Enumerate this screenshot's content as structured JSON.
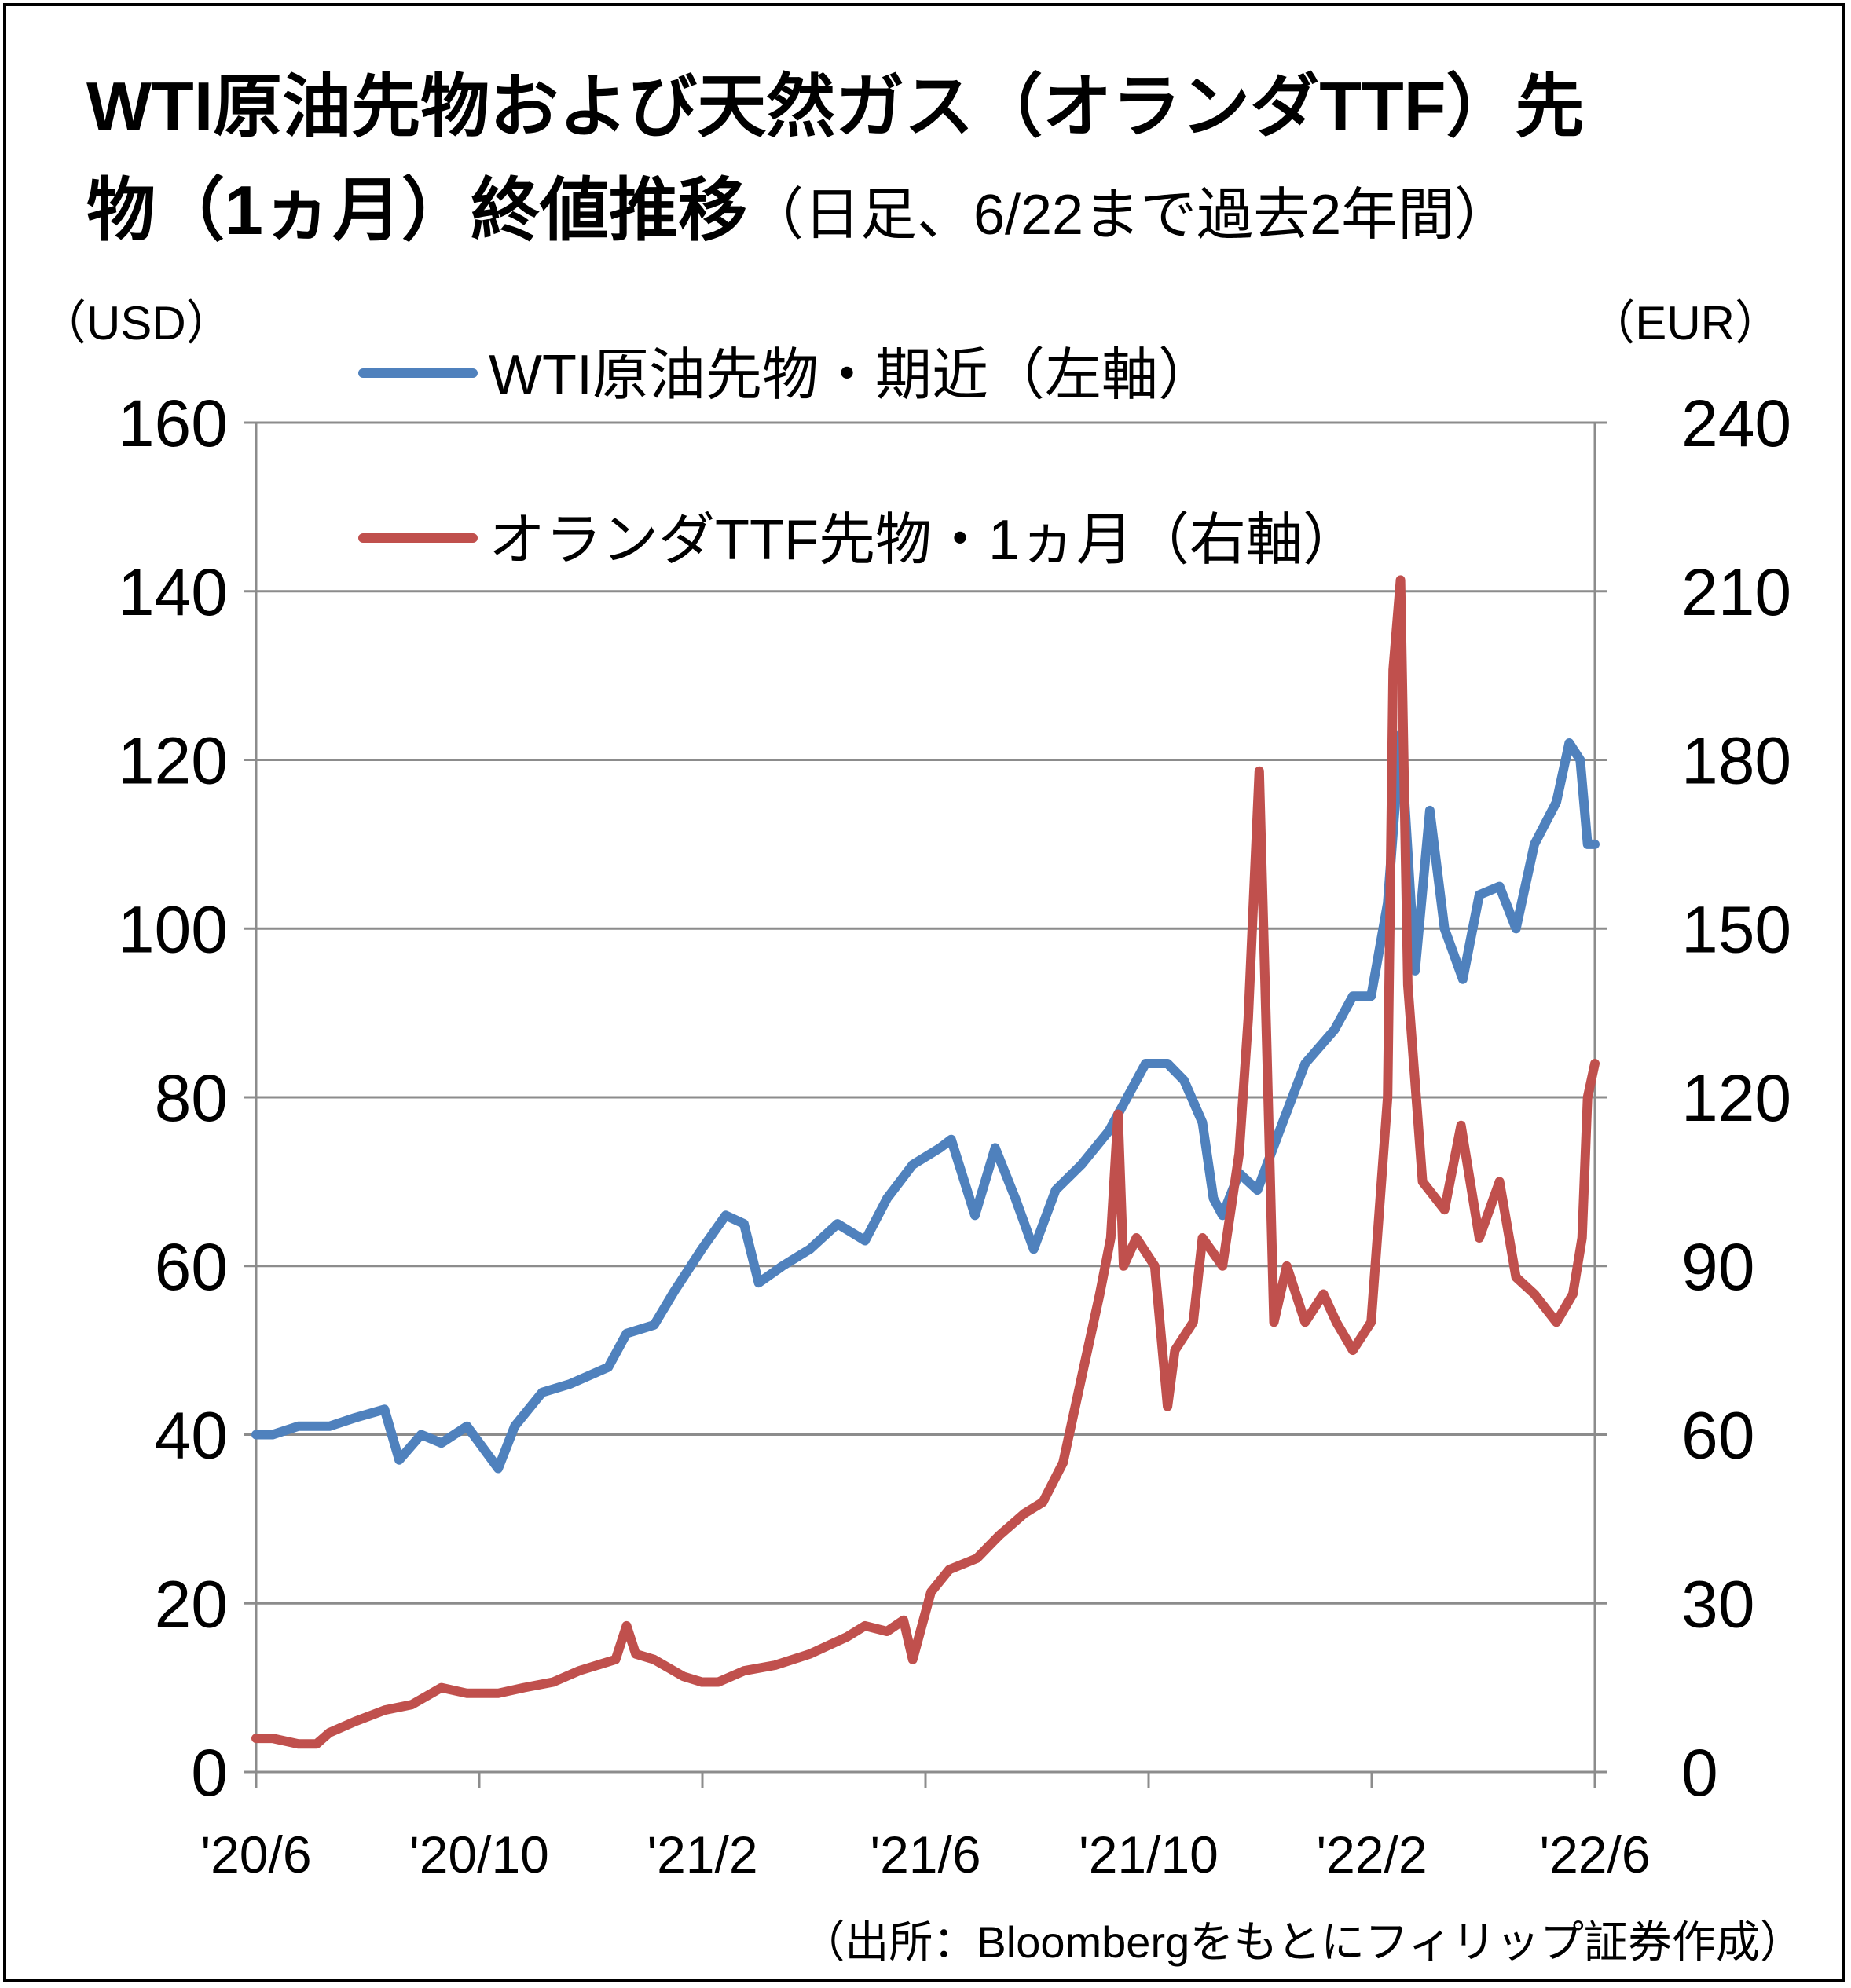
{
  "title": {
    "main_line1": "WTI原油先物および天然ガス（オランダTTF）先",
    "main_line2": "物（1ヵ月）終値推移",
    "sub": "（日足、6/22まで過去2年間）"
  },
  "source": "（出所：Bloombergをもとにフィリップ証券作成）",
  "colors": {
    "wti": "#4f81bd",
    "ttf": "#c0504d",
    "grid": "#8c8c8c"
  },
  "chart_data": {
    "type": "line",
    "y_left_unit": "（USD）",
    "y_right_unit": "（EUR）",
    "y_left_ticks": [
      "0",
      "20",
      "40",
      "60",
      "80",
      "100",
      "120",
      "140",
      "160"
    ],
    "y_right_ticks": [
      "0",
      "30",
      "60",
      "90",
      "120",
      "150",
      "180",
      "210",
      "240"
    ],
    "x_ticks": [
      "'20/6",
      "'20/10",
      "'21/2",
      "'21/6",
      "'21/10",
      "'22/2",
      "'22/6"
    ],
    "y_left_range": [
      0,
      160
    ],
    "y_right_range": [
      0,
      240
    ],
    "grid": true,
    "legend_position": "top-left",
    "series": [
      {
        "name": "WTI原油先物・期近（左軸）",
        "axis": "left",
        "points": [
          [
            "2020-06-22",
            40
          ],
          [
            "2020-07-01",
            40
          ],
          [
            "2020-07-15",
            41
          ],
          [
            "2020-08-01",
            41
          ],
          [
            "2020-08-15",
            42
          ],
          [
            "2020-08-31",
            43
          ],
          [
            "2020-09-08",
            37
          ],
          [
            "2020-09-20",
            40
          ],
          [
            "2020-10-01",
            39
          ],
          [
            "2020-10-15",
            41
          ],
          [
            "2020-11-01",
            36
          ],
          [
            "2020-11-10",
            41
          ],
          [
            "2020-11-25",
            45
          ],
          [
            "2020-12-10",
            46
          ],
          [
            "2020-12-31",
            48
          ],
          [
            "2021-01-10",
            52
          ],
          [
            "2021-01-25",
            53
          ],
          [
            "2021-02-05",
            57
          ],
          [
            "2021-02-20",
            62
          ],
          [
            "2021-03-05",
            66
          ],
          [
            "2021-03-15",
            65
          ],
          [
            "2021-03-23",
            58
          ],
          [
            "2021-04-05",
            60
          ],
          [
            "2021-04-20",
            62
          ],
          [
            "2021-05-05",
            65
          ],
          [
            "2021-05-20",
            63
          ],
          [
            "2021-06-01",
            68
          ],
          [
            "2021-06-15",
            72
          ],
          [
            "2021-06-30",
            74
          ],
          [
            "2021-07-06",
            75
          ],
          [
            "2021-07-19",
            66
          ],
          [
            "2021-07-30",
            74
          ],
          [
            "2021-08-10",
            68
          ],
          [
            "2021-08-20",
            62
          ],
          [
            "2021-09-01",
            69
          ],
          [
            "2021-09-15",
            72
          ],
          [
            "2021-09-30",
            76
          ],
          [
            "2021-10-10",
            80
          ],
          [
            "2021-10-20",
            84
          ],
          [
            "2021-11-01",
            84
          ],
          [
            "2021-11-10",
            82
          ],
          [
            "2021-11-20",
            77
          ],
          [
            "2021-11-26",
            68
          ],
          [
            "2021-12-01",
            66
          ],
          [
            "2021-12-10",
            71
          ],
          [
            "2021-12-20",
            69
          ],
          [
            "2022-01-01",
            76
          ],
          [
            "2022-01-15",
            84
          ],
          [
            "2022-01-31",
            88
          ],
          [
            "2022-02-10",
            92
          ],
          [
            "2022-02-20",
            92
          ],
          [
            "2022-03-01",
            103
          ],
          [
            "2022-03-08",
            123
          ],
          [
            "2022-03-16",
            95
          ],
          [
            "2022-03-24",
            114
          ],
          [
            "2022-04-01",
            100
          ],
          [
            "2022-04-11",
            94
          ],
          [
            "2022-04-20",
            104
          ],
          [
            "2022-05-01",
            105
          ],
          [
            "2022-05-10",
            100
          ],
          [
            "2022-05-20",
            110
          ],
          [
            "2022-06-01",
            115
          ],
          [
            "2022-06-08",
            122
          ],
          [
            "2022-06-14",
            120
          ],
          [
            "2022-06-18",
            110
          ],
          [
            "2022-06-22",
            110
          ]
        ]
      },
      {
        "name": "オランダTTF先物・1ヵ月（右軸）",
        "axis": "right",
        "points": [
          [
            "2020-06-22",
            6
          ],
          [
            "2020-07-01",
            6
          ],
          [
            "2020-07-15",
            5
          ],
          [
            "2020-07-25",
            5
          ],
          [
            "2020-08-01",
            7
          ],
          [
            "2020-08-15",
            9
          ],
          [
            "2020-08-31",
            11
          ],
          [
            "2020-09-15",
            12
          ],
          [
            "2020-10-01",
            15
          ],
          [
            "2020-10-15",
            14
          ],
          [
            "2020-11-01",
            14
          ],
          [
            "2020-11-15",
            15
          ],
          [
            "2020-12-01",
            16
          ],
          [
            "2020-12-15",
            18
          ],
          [
            "2021-01-04",
            20
          ],
          [
            "2021-01-10",
            26
          ],
          [
            "2021-01-15",
            21
          ],
          [
            "2021-01-25",
            20
          ],
          [
            "2021-02-10",
            17
          ],
          [
            "2021-02-20",
            16
          ],
          [
            "2021-03-01",
            16
          ],
          [
            "2021-03-15",
            18
          ],
          [
            "2021-04-01",
            19
          ],
          [
            "2021-04-20",
            21
          ],
          [
            "2021-05-10",
            24
          ],
          [
            "2021-05-20",
            26
          ],
          [
            "2021-06-01",
            25
          ],
          [
            "2021-06-10",
            27
          ],
          [
            "2021-06-15",
            20
          ],
          [
            "2021-06-25",
            32
          ],
          [
            "2021-07-05",
            36
          ],
          [
            "2021-07-20",
            38
          ],
          [
            "2021-08-01",
            42
          ],
          [
            "2021-08-15",
            46
          ],
          [
            "2021-08-25",
            48
          ],
          [
            "2021-09-05",
            55
          ],
          [
            "2021-09-15",
            70
          ],
          [
            "2021-09-25",
            85
          ],
          [
            "2021-10-01",
            95
          ],
          [
            "2021-10-05",
            117
          ],
          [
            "2021-10-08",
            90
          ],
          [
            "2021-10-15",
            95
          ],
          [
            "2021-10-25",
            90
          ],
          [
            "2021-11-01",
            65
          ],
          [
            "2021-11-05",
            75
          ],
          [
            "2021-11-15",
            80
          ],
          [
            "2021-11-20",
            95
          ],
          [
            "2021-12-01",
            90
          ],
          [
            "2021-12-10",
            110
          ],
          [
            "2021-12-15",
            134
          ],
          [
            "2021-12-21",
            178
          ],
          [
            "2021-12-25",
            130
          ],
          [
            "2021-12-29",
            80
          ],
          [
            "2022-01-05",
            90
          ],
          [
            "2022-01-15",
            80
          ],
          [
            "2022-01-25",
            85
          ],
          [
            "2022-02-01",
            80
          ],
          [
            "2022-02-10",
            75
          ],
          [
            "2022-02-20",
            80
          ],
          [
            "2022-03-01",
            120
          ],
          [
            "2022-03-04",
            196
          ],
          [
            "2022-03-08",
            212
          ],
          [
            "2022-03-12",
            140
          ],
          [
            "2022-03-20",
            105
          ],
          [
            "2022-04-01",
            100
          ],
          [
            "2022-04-10",
            115
          ],
          [
            "2022-04-20",
            95
          ],
          [
            "2022-05-01",
            105
          ],
          [
            "2022-05-10",
            88
          ],
          [
            "2022-05-20",
            85
          ],
          [
            "2022-06-01",
            80
          ],
          [
            "2022-06-10",
            85
          ],
          [
            "2022-06-15",
            95
          ],
          [
            "2022-06-18",
            120
          ],
          [
            "2022-06-22",
            126
          ]
        ]
      }
    ]
  }
}
